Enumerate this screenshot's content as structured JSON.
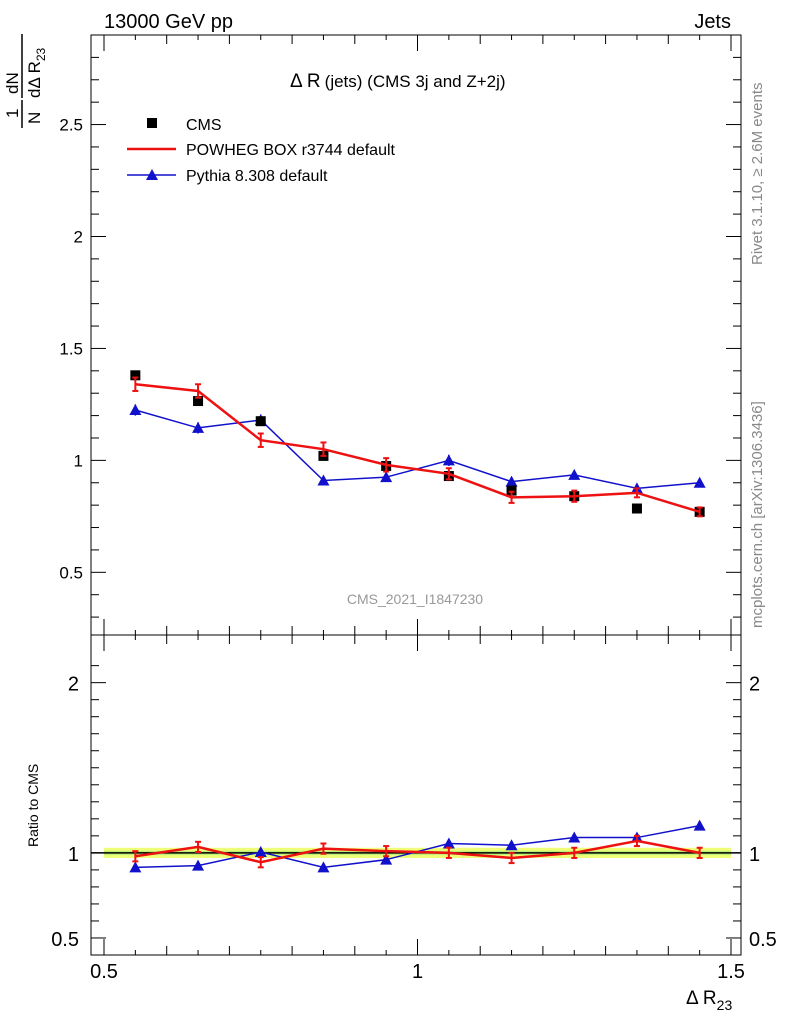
{
  "header": {
    "left": "13000 GeV pp",
    "right": "Jets"
  },
  "side_labels": {
    "rivet": "Rivet 3.1.10, ≥ 2.6M events",
    "mcplots": "mcplots.cern.ch [arXiv:1306.3436]"
  },
  "watermark": "CMS_2021_I1847230",
  "main_title": {
    "prefix": "Δ R",
    "suffix": "(jets) (CMS 3j and Z+2j)"
  },
  "y_axis": {
    "frac_num": "1",
    "frac_den": "N",
    "d_num": "dN",
    "d_den": "dΔ R",
    "sub": "23"
  },
  "x_axis": {
    "label": "Δ R",
    "sub": "23"
  },
  "ratio_axis_label": "Ratio to CMS",
  "colors": {
    "cms": "#000000",
    "powheg": "#ee1111",
    "pythia": "#1111cc",
    "band_outer": "#eeff77",
    "band_inner": "#bbee77"
  },
  "chart_data": [
    {
      "type": "scatter",
      "panel": "main",
      "xlim": [
        0.5,
        1.5
      ],
      "ylim": [
        0.22,
        2.9
      ],
      "x_ticks": [
        "0.5",
        "1",
        "1.5"
      ],
      "y_ticks": [
        "0.5",
        "1",
        "1.5",
        "2",
        "2.5"
      ],
      "x": [
        0.55,
        0.65,
        0.75,
        0.85,
        0.95,
        1.05,
        1.15,
        1.25,
        1.35,
        1.45
      ],
      "series": [
        {
          "name": "CMS",
          "style": "marker-square",
          "values": [
            1.38,
            1.265,
            1.175,
            1.02,
            0.975,
            0.93,
            0.865,
            0.84,
            0.785,
            0.77
          ],
          "err": [
            0.015,
            0.015,
            0.015,
            0.015,
            0.015,
            0.015,
            0.015,
            0.015,
            0.015,
            0.015
          ]
        },
        {
          "name": "POWHEG BOX r3744 default",
          "style": "line",
          "values": [
            1.34,
            1.31,
            1.09,
            1.05,
            0.98,
            0.94,
            0.835,
            0.84,
            0.855,
            0.77
          ],
          "err": [
            0.03,
            0.03,
            0.03,
            0.03,
            0.03,
            0.025,
            0.025,
            0.025,
            0.02,
            0.02
          ]
        },
        {
          "name": "Pythia 8.308 default",
          "style": "line-triangle",
          "values": [
            1.225,
            1.145,
            1.18,
            0.91,
            0.925,
            1.0,
            0.905,
            0.935,
            0.875,
            0.9
          ],
          "err": [
            0.025,
            0.025,
            0.025,
            0.02,
            0.02,
            0.025,
            0.02,
            0.02,
            0.02,
            0.02
          ]
        }
      ]
    },
    {
      "type": "line",
      "panel": "ratio",
      "title": "Ratio to CMS",
      "xlim": [
        0.5,
        1.5
      ],
      "ylim": [
        0.4,
        2.28
      ],
      "x_ticks": [
        "0.5",
        "1",
        "1.5"
      ],
      "y_ticks": [
        "0.5",
        "1",
        "2"
      ],
      "x": [
        0.55,
        0.65,
        0.75,
        0.85,
        0.95,
        1.05,
        1.15,
        1.25,
        1.35,
        1.45
      ],
      "band": {
        "inner": 0.012,
        "outer": 0.03
      },
      "series": [
        {
          "name": "POWHEG BOX r3744 default",
          "values": [
            0.98,
            1.035,
            0.945,
            1.025,
            1.01,
            1.0,
            0.97,
            1.0,
            1.07,
            1.0
          ],
          "err": [
            0.03,
            0.03,
            0.03,
            0.03,
            0.03,
            0.03,
            0.03,
            0.03,
            0.03,
            0.03
          ]
        },
        {
          "name": "Pythia 8.308 default",
          "values": [
            0.915,
            0.925,
            1.005,
            0.915,
            0.96,
            1.055,
            1.045,
            1.09,
            1.09,
            1.16
          ],
          "err": [
            0.02,
            0.02,
            0.02,
            0.02,
            0.02,
            0.02,
            0.02,
            0.02,
            0.02,
            0.02
          ]
        }
      ]
    }
  ]
}
